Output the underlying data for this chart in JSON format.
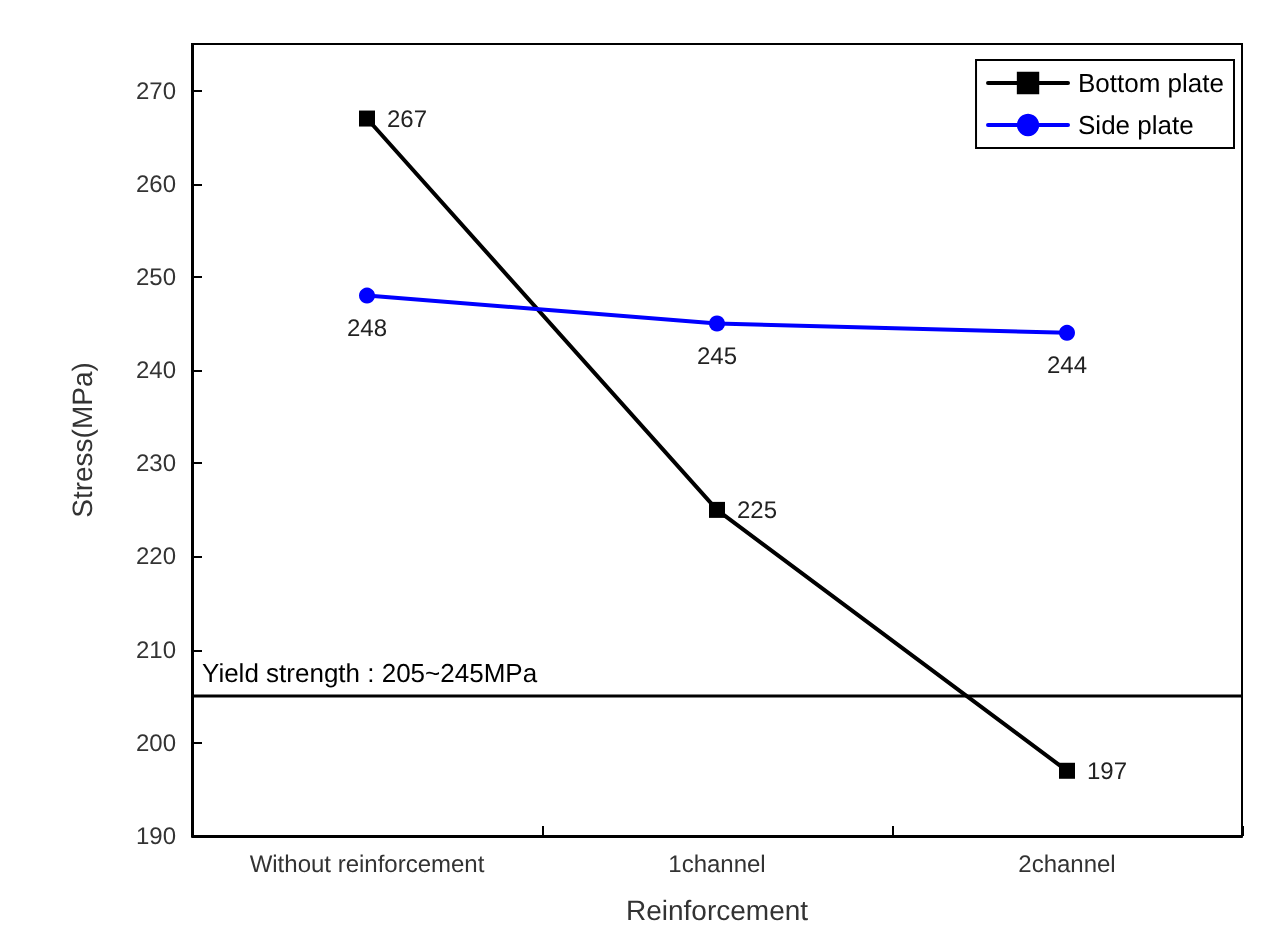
{
  "chart_data": {
    "type": "line",
    "xlabel": "Reinforcement",
    "ylabel": "Stress(MPa)",
    "categories": [
      "Without reinforcement",
      "1channel",
      "2channel"
    ],
    "series": [
      {
        "name": "Bottom plate",
        "color": "#000000",
        "marker": "square",
        "values": [
          267,
          225,
          197
        ]
      },
      {
        "name": "Side plate",
        "color": "#0000ff",
        "marker": "circle",
        "values": [
          248,
          245,
          244
        ]
      }
    ],
    "ylim": [
      190,
      275
    ],
    "yticks": [
      190,
      200,
      210,
      220,
      230,
      240,
      250,
      260,
      270
    ],
    "ref_lines": [
      {
        "axis": "y",
        "value": 205,
        "label": "Yield strength : 205~245MPa",
        "color": "#000000"
      }
    ],
    "data_labels": true,
    "legend": "top right",
    "grid": false,
    "line_style": "solid"
  }
}
